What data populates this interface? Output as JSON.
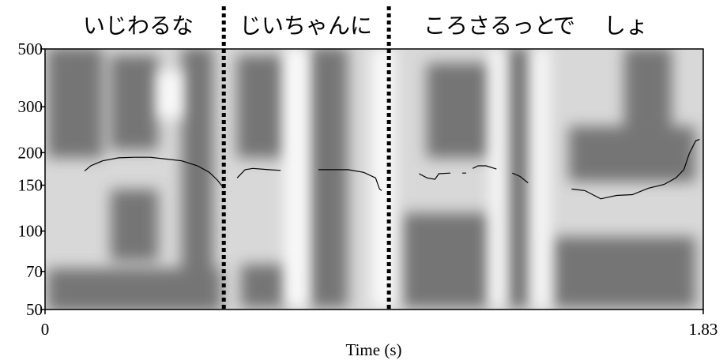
{
  "chart_data": {
    "type": "line",
    "xlabel": "Time (s)",
    "xlim": [
      0,
      1.83
    ],
    "xticks": [
      0,
      1.83
    ],
    "ylim": [
      50,
      500
    ],
    "yticks": [
      50,
      70,
      100,
      150,
      200,
      300,
      500
    ],
    "ylog": true,
    "words": [
      "いじわるな",
      "じいちゃんに",
      "ころさるっと",
      "で",
      "しょ"
    ],
    "boundaries": [
      0.497,
      0.956
    ],
    "x": [
      0.11,
      0.127,
      0.16,
      0.204,
      0.248,
      0.292,
      0.336,
      0.38,
      0.424,
      0.457,
      0.479,
      0.497,
      null,
      0.534,
      0.556,
      0.578,
      0.622,
      0.655,
      null,
      0.76,
      0.842,
      0.886,
      0.919,
      0.93,
      0.936,
      null,
      1.04,
      1.062,
      1.084,
      1.095,
      1.127,
      null,
      1.16,
      1.171,
      null,
      1.189,
      1.204,
      1.226,
      1.255,
      null,
      1.299,
      1.321,
      1.343,
      null,
      1.464,
      1.501,
      1.545,
      1.589,
      1.633,
      1.677,
      1.721,
      1.754,
      1.776,
      1.791,
      1.809,
      1.82
    ],
    "series": [
      {
        "color": "#000000",
        "values": [
          170,
          178,
          186,
          191,
          192,
          192,
          189,
          186,
          178,
          168,
          157,
          146,
          null,
          160,
          172,
          174,
          172,
          171,
          null,
          172,
          172,
          168,
          160,
          145,
          143,
          null,
          166,
          160,
          158,
          166,
          167,
          null,
          167,
          167,
          null,
          174,
          178,
          178,
          173,
          null,
          167,
          162,
          153,
          null,
          145,
          143,
          133,
          137,
          138,
          146,
          151,
          160,
          172,
          198,
          222,
          225
        ]
      }
    ]
  }
}
